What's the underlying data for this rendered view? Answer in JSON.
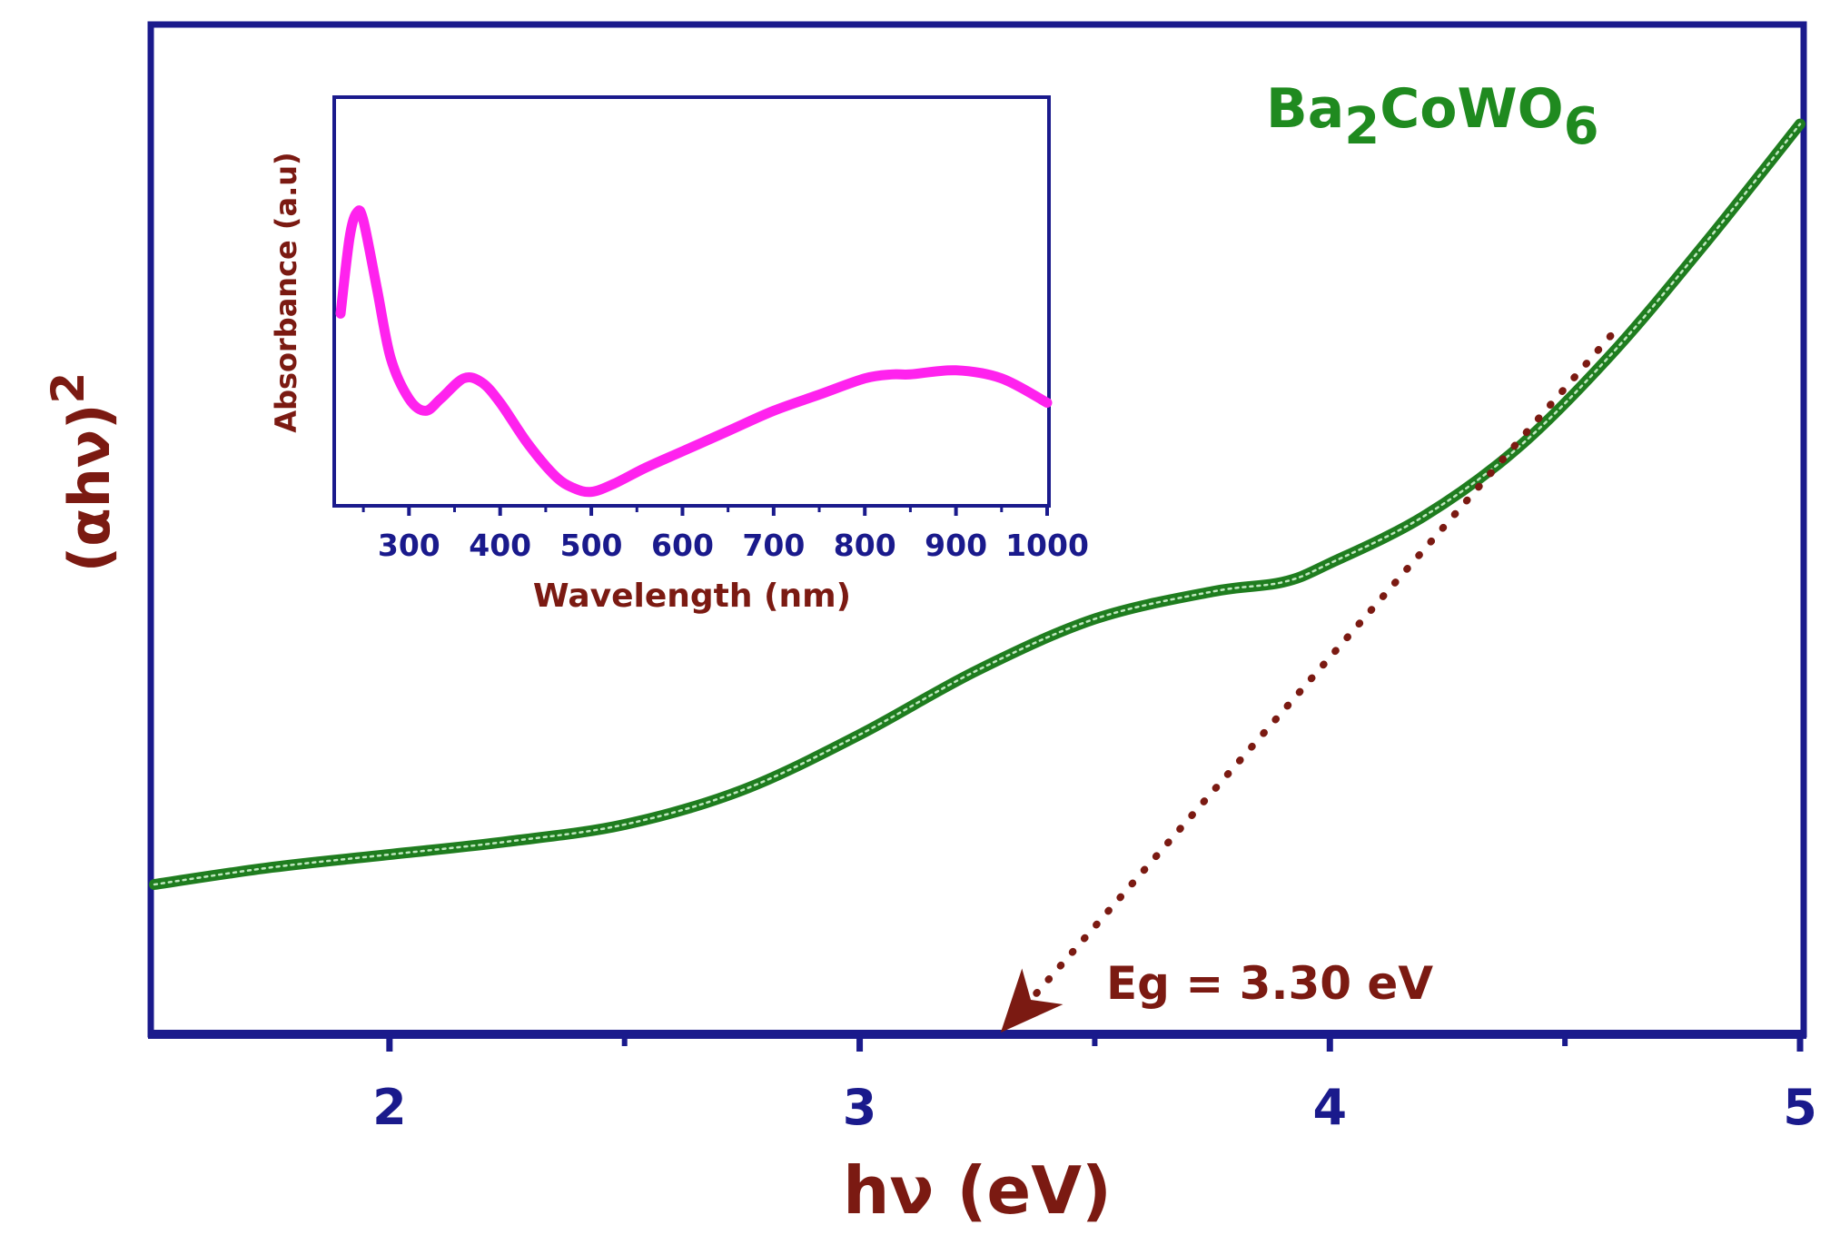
{
  "chart_data": [
    {
      "type": "line",
      "title": "Ba2CoWO6",
      "title_parts": {
        "base1": "Ba",
        "sub1": "2",
        "base2": "CoWO",
        "sub2": "6"
      },
      "xlabel": "hν (eV)",
      "ylabel": "(αhν)",
      "ylabel_superscript": "2",
      "xlim": [
        1.5,
        5.0
      ],
      "ylim": [
        0,
        100
      ],
      "xticks": [
        2,
        3,
        4,
        5
      ],
      "xtick_labels": [
        "2",
        "3",
        "4",
        "5"
      ],
      "minor_xticks": [
        2.5,
        3.5,
        4.5
      ],
      "yticks_visible": false,
      "series": [
        {
          "name": "Ba2CoWO6 Tauc plot",
          "color": "#1f7d1f",
          "x": [
            1.5,
            1.75,
            2.0,
            2.25,
            2.5,
            2.75,
            3.0,
            3.25,
            3.5,
            3.75,
            3.9,
            4.0,
            4.2,
            4.4,
            4.6,
            4.8,
            5.0
          ],
          "y": [
            17.5,
            19.5,
            21,
            22.5,
            24.5,
            28.5,
            35,
            42.5,
            48.5,
            51.7,
            52.8,
            55,
            60.5,
            68.5,
            79.5,
            92.5,
            106.3
          ]
        }
      ],
      "fit_line": {
        "name": "linear extrapolation",
        "color": "#7b1a12",
        "style": "dotted",
        "x": [
          3.3,
          4.62
        ],
        "y": [
          0,
          83
        ]
      },
      "annotation": {
        "text": "Eg = 3.30 eV",
        "x": 3.3,
        "color": "#7b1a12"
      }
    },
    {
      "type": "line",
      "xlabel": "Wavelength (nm)",
      "ylabel": "Absorbance (a.u)",
      "xlim": [
        220,
        1000
      ],
      "ylim": [
        0,
        1
      ],
      "xticks": [
        300,
        400,
        500,
        600,
        700,
        800,
        900,
        1000
      ],
      "xtick_labels": [
        "300",
        "400",
        "500",
        "600",
        "700",
        "800",
        "900",
        "1000"
      ],
      "yticks_visible": false,
      "series": [
        {
          "name": "Absorbance",
          "color": "#ff22ee",
          "x": [
            225,
            235,
            243,
            250,
            265,
            280,
            300,
            318,
            335,
            360,
            380,
            400,
            430,
            460,
            480,
            500,
            525,
            560,
            600,
            650,
            700,
            750,
            800,
            830,
            850,
            900,
            950,
            1000
          ],
          "y": [
            0.47,
            0.66,
            0.72,
            0.7,
            0.53,
            0.36,
            0.26,
            0.23,
            0.26,
            0.31,
            0.3,
            0.25,
            0.15,
            0.07,
            0.04,
            0.03,
            0.05,
            0.09,
            0.13,
            0.18,
            0.23,
            0.27,
            0.31,
            0.32,
            0.32,
            0.33,
            0.31,
            0.25
          ]
        }
      ]
    }
  ]
}
